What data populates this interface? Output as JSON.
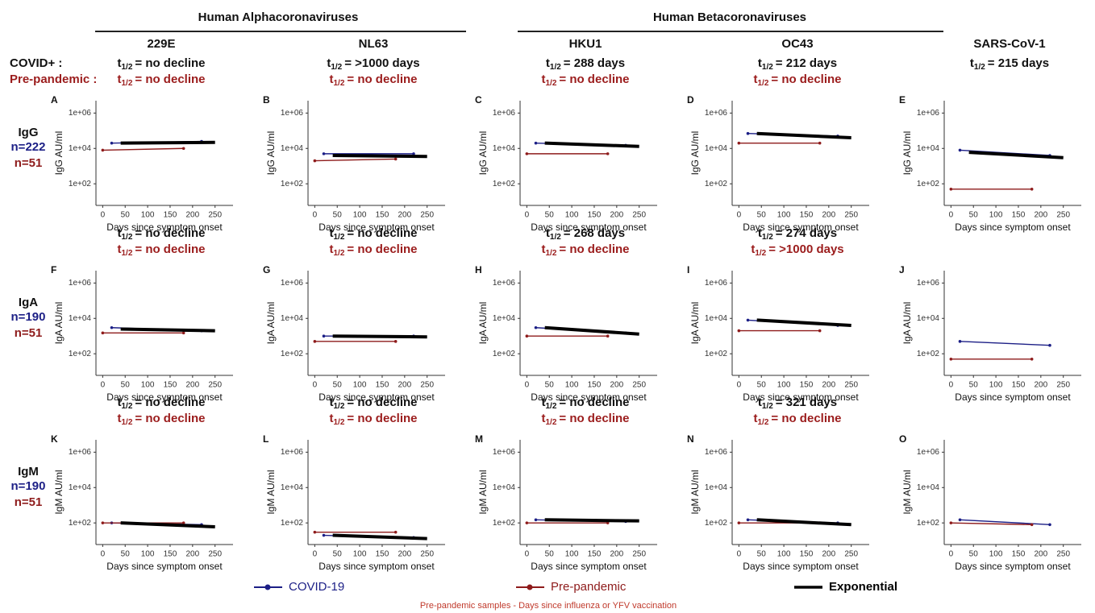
{
  "groups": [
    {
      "title": "Human Alphacoronaviruses"
    },
    {
      "title": "Human Betacoronaviruses"
    }
  ],
  "row_header": {
    "covid": "COVID+ :",
    "prepandemic": "Pre-pandemic :"
  },
  "half_life_symbol": "t",
  "half_life_subscript": "1/2",
  "rows": [
    {
      "label": "IgG",
      "n_covid": "n=222",
      "n_prepandemic": "n=51"
    },
    {
      "label": "IgA",
      "n_covid": "n=190",
      "n_prepandemic": "n=51"
    },
    {
      "label": "IgM",
      "n_covid": "n=190",
      "n_prepandemic": "n=51"
    }
  ],
  "legend": [
    {
      "name": "COVID-19",
      "color": "#1c1f86"
    },
    {
      "name": "Pre-pandemic",
      "color": "#8e1b1b"
    },
    {
      "name": "Exponential",
      "color": "#000000"
    }
  ],
  "footnote": "Pre-pandemic samples - Days since influenza or YFV vaccination",
  "chart_data": [
    {
      "type": "line",
      "letter": "A",
      "title": "229E",
      "half_life": {
        "covid": "= no decline",
        "prepandemic": "= no decline"
      },
      "ylabel": "IgG AU/ml",
      "xlabel": "Days since symptom onset",
      "log_y": true,
      "xlim": [
        -15,
        290
      ],
      "ylim": [
        6,
        5000000
      ],
      "xticks": [
        0,
        50,
        100,
        150,
        200,
        250
      ],
      "yticks": [
        {
          "value": 100,
          "label": "1e+02"
        },
        {
          "value": 10000,
          "label": "1e+04"
        },
        {
          "value": 1000000,
          "label": "1e+06"
        }
      ],
      "covid": {
        "x": [
          20,
          220
        ],
        "values": [
          20000,
          25000
        ]
      },
      "prepandemic": {
        "x": [
          0,
          180
        ],
        "values": [
          8000,
          10000
        ]
      },
      "fit": {
        "x": [
          40,
          250
        ],
        "values": [
          20000,
          22000
        ]
      }
    },
    {
      "type": "line",
      "letter": "B",
      "title": "NL63",
      "half_life": {
        "covid": "= >1000 days",
        "prepandemic": "= no decline"
      },
      "ylabel": "IgG AU/ml",
      "xlabel": "Days since symptom onset",
      "log_y": true,
      "xlim": [
        -15,
        290
      ],
      "ylim": [
        6,
        5000000
      ],
      "xticks": [
        0,
        50,
        100,
        150,
        200,
        250
      ],
      "yticks": [
        {
          "value": 100,
          "label": "1e+02"
        },
        {
          "value": 10000,
          "label": "1e+04"
        },
        {
          "value": 1000000,
          "label": "1e+06"
        }
      ],
      "covid": {
        "x": [
          20,
          220
        ],
        "values": [
          5000,
          5000
        ]
      },
      "prepandemic": {
        "x": [
          0,
          180
        ],
        "values": [
          2000,
          2500
        ]
      },
      "fit": {
        "x": [
          40,
          250
        ],
        "values": [
          4000,
          3500
        ]
      }
    },
    {
      "type": "line",
      "letter": "C",
      "title": "HKU1",
      "half_life": {
        "covid": "= 288 days",
        "prepandemic": "= no decline"
      },
      "ylabel": "IgG AU/ml",
      "xlabel": "Days since symptom onset",
      "log_y": true,
      "xlim": [
        -15,
        290
      ],
      "ylim": [
        6,
        5000000
      ],
      "xticks": [
        0,
        50,
        100,
        150,
        200,
        250
      ],
      "yticks": [
        {
          "value": 100,
          "label": "1e+02"
        },
        {
          "value": 10000,
          "label": "1e+04"
        },
        {
          "value": 1000000,
          "label": "1e+06"
        }
      ],
      "covid": {
        "x": [
          20,
          220
        ],
        "values": [
          20000,
          15000
        ]
      },
      "prepandemic": {
        "x": [
          0,
          180
        ],
        "values": [
          5000,
          5000
        ]
      },
      "fit": {
        "x": [
          40,
          250
        ],
        "values": [
          20000,
          13000
        ]
      }
    },
    {
      "type": "line",
      "letter": "D",
      "title": "OC43",
      "half_life": {
        "covid": "= 212 days",
        "prepandemic": "= no decline"
      },
      "ylabel": "IgG AU/ml",
      "xlabel": "Days since symptom onset",
      "log_y": true,
      "xlim": [
        -15,
        290
      ],
      "ylim": [
        6,
        5000000
      ],
      "xticks": [
        0,
        50,
        100,
        150,
        200,
        250
      ],
      "yticks": [
        {
          "value": 100,
          "label": "1e+02"
        },
        {
          "value": 10000,
          "label": "1e+04"
        },
        {
          "value": 1000000,
          "label": "1e+06"
        }
      ],
      "covid": {
        "x": [
          20,
          220
        ],
        "values": [
          70000,
          50000
        ]
      },
      "prepandemic": {
        "x": [
          0,
          180
        ],
        "values": [
          20000,
          20000
        ]
      },
      "fit": {
        "x": [
          40,
          250
        ],
        "values": [
          70000,
          40000
        ]
      }
    },
    {
      "type": "line",
      "letter": "E",
      "title": "SARS-CoV-1",
      "half_life": {
        "covid": "= 215 days"
      },
      "ylabel": "IgG AU/ml",
      "xlabel": "Days since symptom onset",
      "log_y": true,
      "xlim": [
        -15,
        290
      ],
      "ylim": [
        6,
        5000000
      ],
      "xticks": [
        0,
        50,
        100,
        150,
        200,
        250
      ],
      "yticks": [
        {
          "value": 100,
          "label": "1e+02"
        },
        {
          "value": 10000,
          "label": "1e+04"
        },
        {
          "value": 1000000,
          "label": "1e+06"
        }
      ],
      "covid": {
        "x": [
          20,
          220
        ],
        "values": [
          8000,
          4000
        ]
      },
      "prepandemic": {
        "x": [
          0,
          180
        ],
        "values": [
          50,
          50
        ]
      },
      "fit": {
        "x": [
          40,
          250
        ],
        "values": [
          6000,
          3000
        ]
      }
    },
    {
      "type": "line",
      "letter": "F",
      "half_life": {
        "covid": "= no decline",
        "prepandemic": "= no decline"
      },
      "ylabel": "IgA AU/ml",
      "xlabel": "Days since symptom onset",
      "log_y": true,
      "xlim": [
        -15,
        290
      ],
      "ylim": [
        6,
        5000000
      ],
      "xticks": [
        0,
        50,
        100,
        150,
        200,
        250
      ],
      "yticks": [
        {
          "value": 100,
          "label": "1e+02"
        },
        {
          "value": 10000,
          "label": "1e+04"
        },
        {
          "value": 1000000,
          "label": "1e+06"
        }
      ],
      "covid": {
        "x": [
          20,
          220
        ],
        "values": [
          3000,
          2000
        ]
      },
      "prepandemic": {
        "x": [
          0,
          180
        ],
        "values": [
          1500,
          1500
        ]
      },
      "fit": {
        "x": [
          40,
          250
        ],
        "values": [
          2500,
          2000
        ]
      }
    },
    {
      "type": "line",
      "letter": "G",
      "half_life": {
        "covid": "= no decline",
        "prepandemic": "= no decline"
      },
      "ylabel": "IgA AU/ml",
      "xlabel": "Days since symptom onset",
      "log_y": true,
      "xlim": [
        -15,
        290
      ],
      "ylim": [
        6,
        5000000
      ],
      "xticks": [
        0,
        50,
        100,
        150,
        200,
        250
      ],
      "yticks": [
        {
          "value": 100,
          "label": "1e+02"
        },
        {
          "value": 10000,
          "label": "1e+04"
        },
        {
          "value": 1000000,
          "label": "1e+06"
        }
      ],
      "covid": {
        "x": [
          20,
          220
        ],
        "values": [
          1000,
          1000
        ]
      },
      "prepandemic": {
        "x": [
          0,
          180
        ],
        "values": [
          500,
          500
        ]
      },
      "fit": {
        "x": [
          40,
          250
        ],
        "values": [
          1000,
          900
        ]
      }
    },
    {
      "type": "line",
      "letter": "H",
      "half_life": {
        "covid": "= 268 days",
        "prepandemic": "= no decline"
      },
      "ylabel": "IgA AU/ml",
      "xlabel": "Days since symptom onset",
      "log_y": true,
      "xlim": [
        -15,
        290
      ],
      "ylim": [
        6,
        5000000
      ],
      "xticks": [
        0,
        50,
        100,
        150,
        200,
        250
      ],
      "yticks": [
        {
          "value": 100,
          "label": "1e+02"
        },
        {
          "value": 10000,
          "label": "1e+04"
        },
        {
          "value": 1000000,
          "label": "1e+06"
        }
      ],
      "covid": {
        "x": [
          20,
          220
        ],
        "values": [
          3000,
          1500
        ]
      },
      "prepandemic": {
        "x": [
          0,
          180
        ],
        "values": [
          1000,
          1000
        ]
      },
      "fit": {
        "x": [
          40,
          250
        ],
        "values": [
          3000,
          1300
        ]
      }
    },
    {
      "type": "line",
      "letter": "I",
      "half_life": {
        "covid": "= 274 days",
        "prepandemic": "= >1000 days"
      },
      "ylabel": "IgA AU/ml",
      "xlabel": "Days since symptom onset",
      "log_y": true,
      "xlim": [
        -15,
        290
      ],
      "ylim": [
        6,
        5000000
      ],
      "xticks": [
        0,
        50,
        100,
        150,
        200,
        250
      ],
      "yticks": [
        {
          "value": 100,
          "label": "1e+02"
        },
        {
          "value": 10000,
          "label": "1e+04"
        },
        {
          "value": 1000000,
          "label": "1e+06"
        }
      ],
      "covid": {
        "x": [
          20,
          220
        ],
        "values": [
          8000,
          4000
        ]
      },
      "prepandemic": {
        "x": [
          0,
          180
        ],
        "values": [
          2000,
          2000
        ]
      },
      "fit": {
        "x": [
          40,
          250
        ],
        "values": [
          8000,
          4000
        ]
      }
    },
    {
      "type": "line",
      "letter": "J",
      "ylabel": "IgA AU/ml",
      "xlabel": "Days since symptom onset",
      "log_y": true,
      "xlim": [
        -15,
        290
      ],
      "ylim": [
        6,
        5000000
      ],
      "xticks": [
        0,
        50,
        100,
        150,
        200,
        250
      ],
      "yticks": [
        {
          "value": 100,
          "label": "1e+02"
        },
        {
          "value": 10000,
          "label": "1e+04"
        },
        {
          "value": 1000000,
          "label": "1e+06"
        }
      ],
      "covid": {
        "x": [
          20,
          220
        ],
        "values": [
          500,
          300
        ]
      },
      "prepandemic": {
        "x": [
          0,
          180
        ],
        "values": [
          50,
          50
        ]
      }
    },
    {
      "type": "line",
      "letter": "K",
      "half_life": {
        "covid": "= no decline",
        "prepandemic": "= no decline"
      },
      "ylabel": "IgM AU/ml",
      "xlabel": "Days since symptom onset",
      "log_y": true,
      "xlim": [
        -15,
        290
      ],
      "ylim": [
        6,
        5000000
      ],
      "xticks": [
        0,
        50,
        100,
        150,
        200,
        250
      ],
      "yticks": [
        {
          "value": 100,
          "label": "1e+02"
        },
        {
          "value": 10000,
          "label": "1e+04"
        },
        {
          "value": 1000000,
          "label": "1e+06"
        }
      ],
      "covid": {
        "x": [
          20,
          220
        ],
        "values": [
          100,
          80
        ]
      },
      "prepandemic": {
        "x": [
          0,
          180
        ],
        "values": [
          100,
          100
        ]
      },
      "fit": {
        "x": [
          40,
          250
        ],
        "values": [
          100,
          60
        ]
      }
    },
    {
      "type": "line",
      "letter": "L",
      "half_life": {
        "covid": "= no decline",
        "prepandemic": "= no decline"
      },
      "ylabel": "IgM AU/ml",
      "xlabel": "Days since symptom onset",
      "log_y": true,
      "xlim": [
        -15,
        290
      ],
      "ylim": [
        6,
        5000000
      ],
      "xticks": [
        0,
        50,
        100,
        150,
        200,
        250
      ],
      "yticks": [
        {
          "value": 100,
          "label": "1e+02"
        },
        {
          "value": 10000,
          "label": "1e+04"
        },
        {
          "value": 1000000,
          "label": "1e+06"
        }
      ],
      "covid": {
        "x": [
          20,
          220
        ],
        "values": [
          20,
          15
        ]
      },
      "prepandemic": {
        "x": [
          0,
          180
        ],
        "values": [
          30,
          30
        ]
      },
      "fit": {
        "x": [
          40,
          250
        ],
        "values": [
          20,
          13
        ]
      }
    },
    {
      "type": "line",
      "letter": "M",
      "half_life": {
        "covid": "=  no decline",
        "prepandemic": "= no decline"
      },
      "ylabel": "IgM AU/ml",
      "xlabel": "Days since symptom onset",
      "log_y": true,
      "xlim": [
        -15,
        290
      ],
      "ylim": [
        6,
        5000000
      ],
      "xticks": [
        0,
        50,
        100,
        150,
        200,
        250
      ],
      "yticks": [
        {
          "value": 100,
          "label": "1e+02"
        },
        {
          "value": 10000,
          "label": "1e+04"
        },
        {
          "value": 1000000,
          "label": "1e+06"
        }
      ],
      "covid": {
        "x": [
          20,
          220
        ],
        "values": [
          150,
          120
        ]
      },
      "prepandemic": {
        "x": [
          0,
          180
        ],
        "values": [
          100,
          100
        ]
      },
      "fit": {
        "x": [
          40,
          250
        ],
        "values": [
          150,
          130
        ]
      }
    },
    {
      "type": "line",
      "letter": "N",
      "half_life": {
        "covid": "= 321 days",
        "prepandemic": "= no decline"
      },
      "ylabel": "IgM AU/ml",
      "xlabel": "Days since symptom onset",
      "log_y": true,
      "xlim": [
        -15,
        290
      ],
      "ylim": [
        6,
        5000000
      ],
      "xticks": [
        0,
        50,
        100,
        150,
        200,
        250
      ],
      "yticks": [
        {
          "value": 100,
          "label": "1e+02"
        },
        {
          "value": 10000,
          "label": "1e+04"
        },
        {
          "value": 1000000,
          "label": "1e+06"
        }
      ],
      "covid": {
        "x": [
          20,
          220
        ],
        "values": [
          150,
          100
        ]
      },
      "prepandemic": {
        "x": [
          0,
          180
        ],
        "values": [
          100,
          100
        ]
      },
      "fit": {
        "x": [
          40,
          250
        ],
        "values": [
          150,
          80
        ]
      }
    },
    {
      "type": "line",
      "letter": "O",
      "ylabel": "IgM AU/ml",
      "xlabel": "Days since symptom onset",
      "log_y": true,
      "xlim": [
        -15,
        290
      ],
      "ylim": [
        6,
        5000000
      ],
      "xticks": [
        0,
        50,
        100,
        150,
        200,
        250
      ],
      "yticks": [
        {
          "value": 100,
          "label": "1e+02"
        },
        {
          "value": 10000,
          "label": "1e+04"
        },
        {
          "value": 1000000,
          "label": "1e+06"
        }
      ],
      "covid": {
        "x": [
          20,
          220
        ],
        "values": [
          150,
          80
        ]
      },
      "prepandemic": {
        "x": [
          0,
          180
        ],
        "values": [
          100,
          80
        ]
      }
    }
  ]
}
